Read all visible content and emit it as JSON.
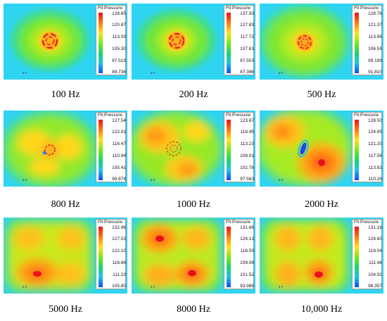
{
  "colorbar_title": "Flt:Pressure",
  "axis_mark": "z↗",
  "gradient": [
    "#e8121a",
    "#ff7a10",
    "#ffe21a",
    "#7fe81a",
    "#16d66c",
    "#18c8e8",
    "#1a4af0"
  ],
  "panels": [
    {
      "caption": "100 Hz",
      "ticks": [
        "128.65",
        "120.87",
        "113.09",
        "105.30",
        "97.519",
        "89.736"
      ]
    },
    {
      "caption": "200 Hz",
      "ticks": [
        "137.93",
        "127.83",
        "117.72",
        "107.61",
        "97.503",
        "87.396"
      ]
    },
    {
      "caption": "500 Hz",
      "ticks": [
        "128.76",
        "121.37",
        "113.98",
        "106.59",
        "99.199",
        "91.810"
      ]
    },
    {
      "caption": "800 Hz",
      "ticks": [
        "127.54",
        "122.01",
        "116.47",
        "110.94",
        "105.41",
        "99.874"
      ]
    },
    {
      "caption": "1000 Hz",
      "ticks": [
        "123.67",
        "118.45",
        "113.23",
        "108.01",
        "102.78",
        "97.563"
      ]
    },
    {
      "caption": "2000 Hz",
      "ticks": [
        "128.50",
        "124.85",
        "121.20",
        "117.56",
        "113.91",
        "110.26"
      ]
    },
    {
      "caption": "5000 Hz",
      "ticks": [
        "132.96",
        "127.53",
        "122.10",
        "116.66",
        "111.23",
        "105.80"
      ]
    },
    {
      "caption": "8000 Hz",
      "ticks": [
        "131.66",
        "124.13",
        "116.59",
        "109.06",
        "101.52",
        "93.988"
      ]
    },
    {
      "caption": "10,000 Hz",
      "ticks": [
        "131.16",
        "124.60",
        "118.04",
        "111.48",
        "104.92",
        "98.357"
      ]
    }
  ]
}
